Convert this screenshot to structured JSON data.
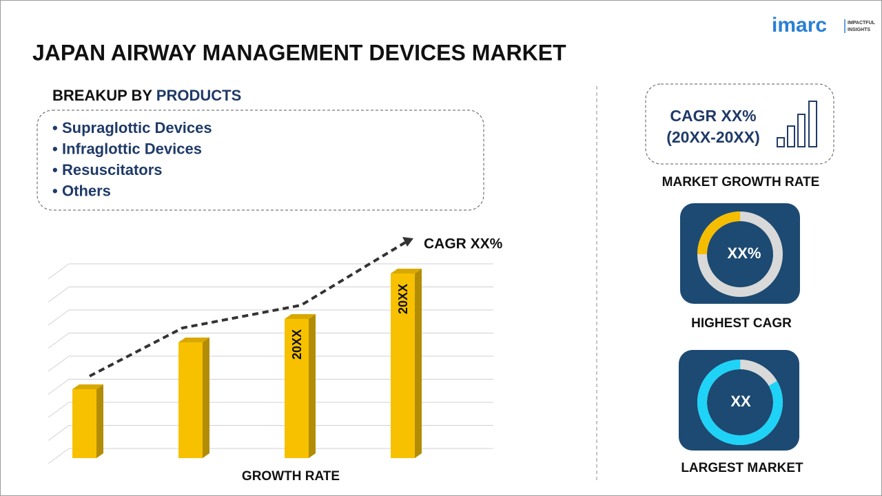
{
  "logo": {
    "brand": "imarc",
    "tagline_1": "IMPACTFUL",
    "tagline_2": "INSIGHTS"
  },
  "header": {
    "title": "JAPAN AIRWAY MANAGEMENT DEVICES MARKET"
  },
  "breakup": {
    "label": "BREAKUP BY",
    "dimension": "PRODUCTS",
    "items": [
      "Supraglottic Devices",
      "Infraglottic Devices",
      "Resuscitators",
      "Others"
    ]
  },
  "illustration": {
    "trend_label": "CAGR XX%",
    "bar_labels": [
      "20XX",
      "20XX"
    ],
    "axis_label": "GROWTH RATE"
  },
  "kpis": {
    "growth": {
      "line_1": "CAGR XX%",
      "line_2": "(20XX-20XX)",
      "caption": "MARKET GROWTH RATE"
    },
    "highest": {
      "value": "XX%",
      "caption": "HIGHEST CAGR"
    },
    "largest": {
      "value": "XX",
      "caption": "LARGEST MARKET"
    }
  }
}
